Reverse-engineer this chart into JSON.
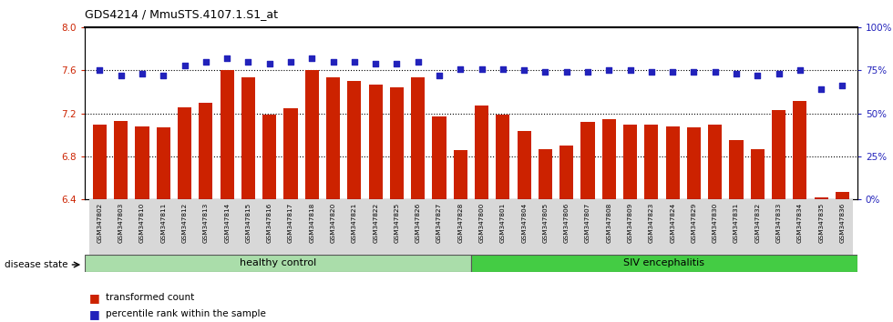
{
  "title": "GDS4214 / MmuSTS.4107.1.S1_at",
  "samples": [
    "GSM347802",
    "GSM347803",
    "GSM347810",
    "GSM347811",
    "GSM347812",
    "GSM347813",
    "GSM347814",
    "GSM347815",
    "GSM347816",
    "GSM347817",
    "GSM347818",
    "GSM347820",
    "GSM347821",
    "GSM347822",
    "GSM347825",
    "GSM347826",
    "GSM347827",
    "GSM347828",
    "GSM347800",
    "GSM347801",
    "GSM347804",
    "GSM347805",
    "GSM347806",
    "GSM347807",
    "GSM347808",
    "GSM347809",
    "GSM347823",
    "GSM347824",
    "GSM347829",
    "GSM347830",
    "GSM347831",
    "GSM347832",
    "GSM347833",
    "GSM347834",
    "GSM347835",
    "GSM347836"
  ],
  "bar_values": [
    7.1,
    7.13,
    7.08,
    7.07,
    7.26,
    7.3,
    7.6,
    7.54,
    7.19,
    7.25,
    7.6,
    7.54,
    7.5,
    7.47,
    7.44,
    7.54,
    7.17,
    6.86,
    7.27,
    7.19,
    7.04,
    6.87,
    6.9,
    7.12,
    7.15,
    7.1,
    7.1,
    7.08,
    7.07,
    7.1,
    6.95,
    6.87,
    7.23,
    7.32,
    6.42,
    6.47
  ],
  "percentile_values": [
    75,
    72,
    73,
    72,
    78,
    80,
    82,
    80,
    79,
    80,
    82,
    80,
    80,
    79,
    79,
    80,
    72,
    76,
    76,
    76,
    75,
    74,
    74,
    74,
    75,
    75,
    74,
    74,
    74,
    74,
    73,
    72,
    73,
    75,
    64,
    66
  ],
  "healthy_count": 18,
  "ymin": 6.4,
  "ymax": 8.0,
  "ylim_right": [
    0,
    100
  ],
  "yticks_left": [
    6.4,
    6.8,
    7.2,
    7.6,
    8.0
  ],
  "yticks_right": [
    0,
    25,
    50,
    75,
    100
  ],
  "ytick_labels_right": [
    "0%",
    "25%",
    "50%",
    "75%",
    "100%"
  ],
  "bar_color": "#cc2200",
  "percentile_color": "#2222bb",
  "healthy_color": "#aaddaa",
  "siv_color": "#44cc44",
  "healthy_label": "healthy control",
  "siv_label": "SIV encephalitis",
  "disease_state_label": "disease state",
  "legend_bar_label": "transformed count",
  "legend_pct_label": "percentile rank within the sample"
}
